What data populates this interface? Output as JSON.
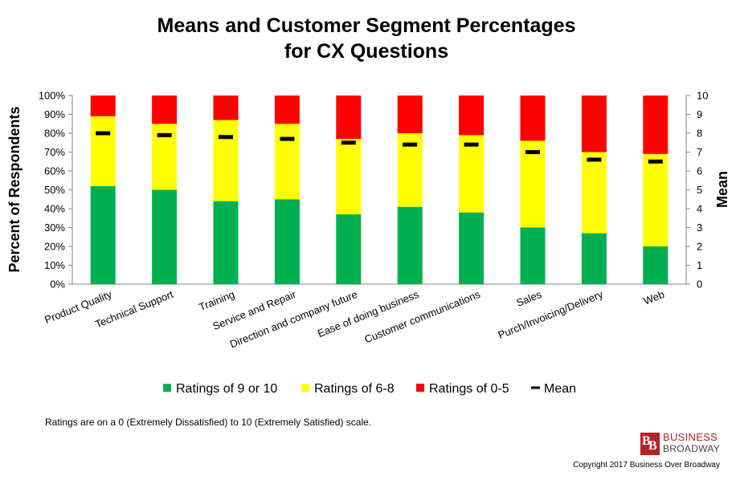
{
  "chart_data": {
    "type": "bar",
    "title_line1": "Means and Customer Segment Percentages",
    "title_line2": "for CX Questions",
    "ylabel": "Percent of Respondents",
    "y2label": "Mean",
    "ylim": [
      0,
      100
    ],
    "y2lim": [
      0,
      10
    ],
    "yticks": [
      "0%",
      "10%",
      "20%",
      "30%",
      "40%",
      "50%",
      "60%",
      "70%",
      "80%",
      "90%",
      "100%"
    ],
    "y2ticks": [
      "0",
      "1",
      "2",
      "3",
      "4",
      "5",
      "6",
      "7",
      "8",
      "9",
      "10"
    ],
    "categories": [
      "Product Quality",
      "Technical Support",
      "Training",
      "Service and Repair",
      "Direction and company future",
      "Ease of doing business",
      "Customer communications",
      "Sales",
      "Purch/Invoicing/Delivery",
      "Web"
    ],
    "series": [
      {
        "name": "Ratings of 9 or 10",
        "color": "#00b050",
        "values": [
          52,
          50,
          44,
          45,
          37,
          41,
          38,
          30,
          27,
          20
        ]
      },
      {
        "name": "Ratings of 6-8",
        "color": "#ffff00",
        "values": [
          37,
          35,
          43,
          40,
          40,
          39,
          41,
          46,
          43,
          49
        ]
      },
      {
        "name": "Ratings of 0-5",
        "color": "#ff0000",
        "values": [
          11,
          15,
          13,
          15,
          23,
          20,
          21,
          24,
          30,
          31
        ]
      }
    ],
    "mean": {
      "name": "Mean",
      "color": "#000000",
      "values": [
        8.0,
        7.9,
        7.8,
        7.7,
        7.5,
        7.4,
        7.4,
        7.0,
        6.6,
        6.5
      ]
    },
    "legend_position": "bottom",
    "grid": false
  },
  "footnote": "Ratings are on a 0 (Extremely Dissatisfied) to 10 (Extremely Satisfied) scale.",
  "logo": {
    "word1": "BUSINESS",
    "word2": "BROADWAY",
    "mark": "BB"
  },
  "copyright": "Copyright 2017 Business Over Broadway"
}
